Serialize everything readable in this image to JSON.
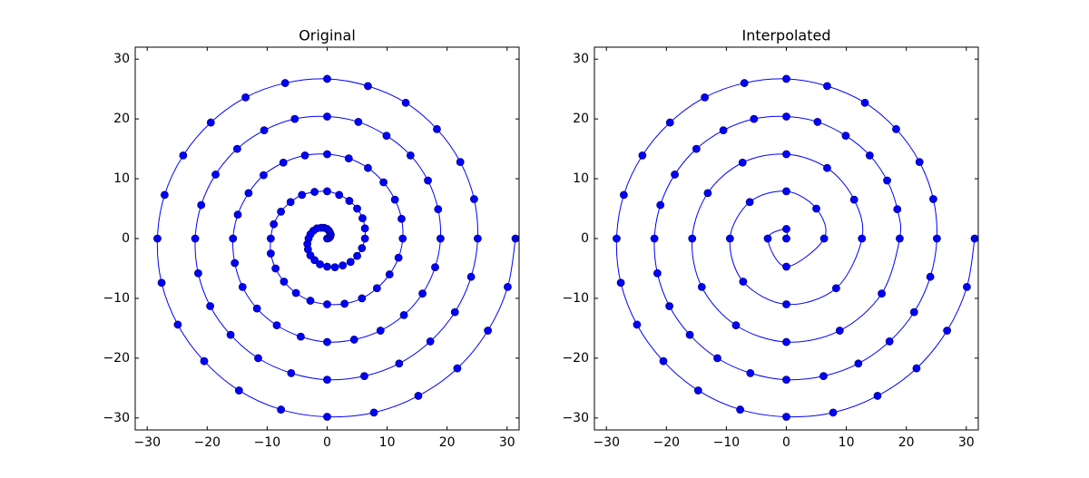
{
  "chart_data": [
    {
      "type": "line",
      "title": "Original",
      "markers": true,
      "color": "#0000ff",
      "x": [
        0,
        0.3,
        0.5,
        0.6,
        0.5,
        0.3,
        0,
        -0.5,
        -1.0,
        -1.7,
        -2.3,
        -2.8,
        -3.1,
        -3.3,
        -3.2,
        -2.8,
        -2.1,
        -1.2,
        0,
        1.3,
        2.6,
        3.9,
        5.0,
        5.8,
        6.3,
        6.3,
        5.9,
        5.0,
        3.7,
        2.0,
        0,
        -2.1,
        -4.2,
        -6.1,
        -7.7,
        -8.9,
        -9.4,
        -9.4,
        -8.6,
        -7.2,
        -5.2,
        -2.8,
        0,
        2.9,
        5.8,
        8.3,
        10.4,
        11.9,
        12.6,
        12.4,
        11.3,
        9.4,
        6.8,
        3.6,
        0,
        -3.7,
        -7.3,
        -10.6,
        -13.1,
        -14.9,
        -15.7,
        -15.4,
        -14.1,
        -11.7,
        -8.4,
        -4.4,
        0,
        4.5,
        8.9,
        12.8,
        15.9,
        18.0,
        18.9,
        18.5,
        16.8,
        13.9,
        9.9,
        5.2,
        0,
        -5.4,
        -10.5,
        -15.0,
        -18.6,
        -21.0,
        -22.0,
        -21.5,
        -19.5,
        -16.1,
        -11.5,
        -6.0,
        0,
        6.2,
        12.0,
        17.2,
        21.3,
        24.0,
        25.1,
        24.5,
        22.2,
        18.3,
        13.1,
        6.8,
        0,
        -7.0,
        -13.6,
        -19.4,
        -24.0,
        -27.1,
        -28.3,
        -27.6,
        -24.9,
        -20.5,
        -14.7,
        -7.7,
        0,
        7.8,
        15.2,
        21.7,
        26.8,
        30.1,
        31.4
      ],
      "values": [
        0,
        0.1,
        0.3,
        0.6,
        0.9,
        1.3,
        1.6,
        1.8,
        1.8,
        1.7,
        1.3,
        0.7,
        0,
        -0.9,
        -1.8,
        -2.8,
        -3.6,
        -4.3,
        -4.7,
        -4.8,
        -4.5,
        -3.9,
        -2.9,
        -1.6,
        0,
        1.7,
        3.4,
        5.0,
        6.3,
        7.3,
        7.9,
        7.8,
        7.3,
        6.1,
        4.5,
        2.4,
        0,
        -2.5,
        -5.0,
        -7.2,
        -9.1,
        -10.4,
        -11.0,
        -10.9,
        -10.0,
        -8.3,
        -6.0,
        -3.2,
        0,
        3.3,
        6.5,
        9.4,
        11.8,
        13.4,
        14.1,
        13.9,
        12.7,
        10.6,
        7.6,
        4.0,
        0,
        -4.1,
        -8.1,
        -11.7,
        -14.5,
        -16.4,
        -17.3,
        -16.9,
        -15.4,
        -12.8,
        -9.2,
        -4.8,
        0,
        4.9,
        9.7,
        13.9,
        17.2,
        19.5,
        20.4,
        20.0,
        18.1,
        15.0,
        10.7,
        5.6,
        0,
        -5.8,
        -11.3,
        -16.1,
        -20.0,
        -22.5,
        -23.6,
        -23.0,
        -20.9,
        -17.2,
        -12.3,
        -6.4,
        0,
        6.6,
        12.8,
        18.3,
        22.7,
        25.5,
        26.7,
        26.0,
        23.6,
        19.4,
        13.9,
        7.3,
        0,
        -7.4,
        -14.4,
        -20.5,
        -25.4,
        -28.6,
        -29.8,
        -29.1,
        -26.3,
        -21.7,
        -15.4,
        -8.1,
        0
      ],
      "xlim": [
        -32,
        32
      ],
      "ylim": [
        -32,
        32
      ],
      "xticks": [
        {
          "value": -30,
          "label": "−30"
        },
        {
          "value": -20,
          "label": "−20"
        },
        {
          "value": -10,
          "label": "−10"
        },
        0,
        10,
        20,
        30
      ],
      "yticks": [
        {
          "value": -30,
          "label": "−30"
        },
        {
          "value": -20,
          "label": "−20"
        },
        {
          "value": -10,
          "label": "−10"
        },
        0,
        10,
        20,
        30
      ]
    },
    {
      "type": "line",
      "title": "Interpolated",
      "markers": true,
      "color": "#0000ff",
      "x": [
        0,
        0,
        -3.1,
        0,
        6.3,
        5.0,
        0,
        -6.1,
        -9.4,
        -7.2,
        0,
        8.3,
        12.6,
        11.3,
        6.8,
        0,
        -7.3,
        -13.1,
        -15.7,
        -14.1,
        -8.4,
        0,
        8.9,
        15.9,
        18.9,
        18.5,
        16.8,
        13.9,
        9.9,
        5.2,
        0,
        -5.4,
        -10.5,
        -15.0,
        -18.6,
        -21.0,
        -22.0,
        -21.5,
        -19.5,
        -16.1,
        -11.5,
        -6.0,
        0,
        6.2,
        12.0,
        17.2,
        21.3,
        24.0,
        25.1,
        24.5,
        22.2,
        18.3,
        13.1,
        6.8,
        0,
        -7.0,
        -13.6,
        -19.4,
        -24.0,
        -27.1,
        -28.3,
        -27.6,
        -24.9,
        -20.5,
        -14.7,
        -7.7,
        0,
        7.8,
        15.2,
        21.7,
        26.8,
        30.1,
        31.4
      ],
      "values": [
        0,
        1.6,
        0,
        -4.7,
        0,
        5.0,
        7.9,
        6.1,
        0,
        -7.2,
        -11.0,
        -8.3,
        0,
        6.5,
        11.8,
        14.1,
        12.7,
        7.6,
        0,
        -8.1,
        -14.5,
        -17.3,
        -15.4,
        -9.2,
        0,
        4.9,
        9.7,
        13.9,
        17.2,
        19.5,
        20.4,
        20.0,
        18.1,
        15.0,
        10.7,
        5.6,
        0,
        -5.8,
        -11.3,
        -16.1,
        -20.0,
        -22.5,
        -23.6,
        -23.0,
        -20.9,
        -17.2,
        -12.3,
        -6.4,
        0,
        6.6,
        12.8,
        18.3,
        22.7,
        25.5,
        26.7,
        26.0,
        23.6,
        19.4,
        13.9,
        7.3,
        0,
        -7.4,
        -14.4,
        -20.5,
        -25.4,
        -28.6,
        -29.8,
        -29.1,
        -26.3,
        -21.7,
        -15.4,
        -8.1,
        0
      ],
      "xlim": [
        -32,
        32
      ],
      "ylim": [
        -32,
        32
      ],
      "xticks": [
        {
          "value": -30,
          "label": "−30"
        },
        {
          "value": -20,
          "label": "−20"
        },
        {
          "value": -10,
          "label": "−10"
        },
        0,
        10,
        20,
        30
      ],
      "yticks": [
        {
          "value": -30,
          "label": "−30"
        },
        {
          "value": -20,
          "label": "−20"
        },
        {
          "value": -10,
          "label": "−10"
        },
        0,
        10,
        20,
        30
      ]
    }
  ]
}
